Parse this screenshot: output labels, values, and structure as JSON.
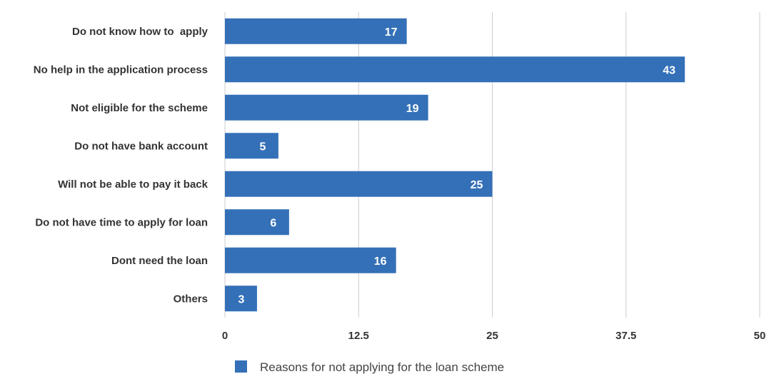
{
  "chart_data": {
    "type": "bar",
    "orientation": "horizontal",
    "categories": [
      "Do not know how to  apply",
      "No help in the application process",
      "Not eligible for the scheme",
      "Do not have bank account",
      "Will not be able to pay it back",
      "Do not have time to apply for loan",
      "Dont need the loan",
      "Others"
    ],
    "series": [
      {
        "name": "Reasons for not applying for the loan scheme",
        "values": [
          17,
          43,
          19,
          5,
          25,
          6,
          16,
          3
        ],
        "color": "#3470b8"
      }
    ],
    "xlim": [
      0,
      50
    ],
    "x_ticks": [
      "0",
      "12.5",
      "25",
      "37.5",
      "50"
    ],
    "grid": true,
    "legend": "bottom",
    "title": "",
    "xlabel": "",
    "ylabel": ""
  }
}
